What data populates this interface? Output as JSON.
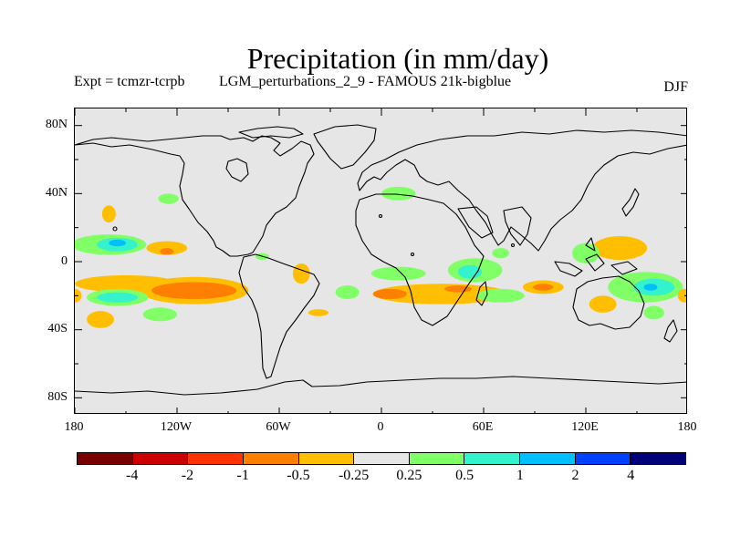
{
  "title": "Precipitation (in mm/day)",
  "expt": "Expt = tcmzr-tcrpb",
  "experiment_name": "LGM_perturbations_2_9 - FAMOUS 21k-bigblue",
  "season": "DJF",
  "axes": {
    "lat_labels": [
      "80N",
      "40N",
      "0",
      "40S",
      "80S"
    ],
    "lon_labels": [
      "180",
      "120W",
      "60W",
      "0",
      "60E",
      "120E",
      "180"
    ]
  },
  "colorbar": {
    "colors": [
      "#7a0000",
      "#cc0000",
      "#ff3300",
      "#ff7f00",
      "#ffbf00",
      "#e6e6e6",
      "#80ff66",
      "#33f2cc",
      "#00bfff",
      "#0040ff",
      "#00007a"
    ],
    "labels": [
      "-4",
      "-2",
      "-1",
      "-0.5",
      "-0.25",
      "0.25",
      "0.5",
      "1",
      "2",
      "4"
    ]
  },
  "map_data": {
    "lon_range": [
      -180,
      180
    ],
    "lat_range": [
      -90,
      90
    ],
    "anomaly_regions": [
      {
        "color": "#80ff66",
        "lon": -160,
        "lat": 10,
        "rx": 22,
        "ry": 6
      },
      {
        "color": "#33f2cc",
        "lon": -155,
        "lat": 10,
        "rx": 12,
        "ry": 4
      },
      {
        "color": "#00bfff",
        "lon": -155,
        "lat": 11,
        "rx": 5,
        "ry": 2
      },
      {
        "color": "#ffbf00",
        "lon": -126,
        "lat": 8,
        "rx": 12,
        "ry": 4
      },
      {
        "color": "#ff7f00",
        "lon": -126,
        "lat": 6,
        "rx": 4,
        "ry": 2
      },
      {
        "color": "#ffbf00",
        "lon": -160,
        "lat": 28,
        "rx": 4,
        "ry": 5
      },
      {
        "color": "#80ff66",
        "lon": -125,
        "lat": 37,
        "rx": 6,
        "ry": 3
      },
      {
        "color": "#ffbf00",
        "lon": -150,
        "lat": -13,
        "rx": 30,
        "ry": 5
      },
      {
        "color": "#ffbf00",
        "lon": -110,
        "lat": -17,
        "rx": 32,
        "ry": 8
      },
      {
        "color": "#ff7f00",
        "lon": -110,
        "lat": -17,
        "rx": 25,
        "ry": 5
      },
      {
        "color": "#80ff66",
        "lon": -155,
        "lat": -21,
        "rx": 18,
        "ry": 5
      },
      {
        "color": "#33f2cc",
        "lon": -155,
        "lat": -21,
        "rx": 12,
        "ry": 3
      },
      {
        "color": "#ffbf00",
        "lon": -180,
        "lat": -20,
        "rx": 4,
        "ry": 4
      },
      {
        "color": "#ffbf00",
        "lon": -165,
        "lat": -34,
        "rx": 8,
        "ry": 5
      },
      {
        "color": "#80ff66",
        "lon": -130,
        "lat": -31,
        "rx": 10,
        "ry": 4
      },
      {
        "color": "#ffbf00",
        "lon": -47,
        "lat": -7,
        "rx": 5,
        "ry": 6
      },
      {
        "color": "#80ff66",
        "lon": -20,
        "lat": -18,
        "rx": 7,
        "ry": 4
      },
      {
        "color": "#ffbf00",
        "lon": -37,
        "lat": -30,
        "rx": 6,
        "ry": 2
      },
      {
        "color": "#80ff66",
        "lon": -70,
        "lat": 3,
        "rx": 4,
        "ry": 2
      },
      {
        "color": "#80ff66",
        "lon": 10,
        "lat": 40,
        "rx": 10,
        "ry": 4
      },
      {
        "color": "#80ff66",
        "lon": 10,
        "lat": -7,
        "rx": 16,
        "ry": 4
      },
      {
        "color": "#80ff66",
        "lon": 55,
        "lat": -5,
        "rx": 16,
        "ry": 7
      },
      {
        "color": "#33f2cc",
        "lon": 52,
        "lat": -6,
        "rx": 7,
        "ry": 4
      },
      {
        "color": "#80ff66",
        "lon": 70,
        "lat": 5,
        "rx": 5,
        "ry": 3
      },
      {
        "color": "#ffbf00",
        "lon": 35,
        "lat": -19,
        "rx": 40,
        "ry": 6
      },
      {
        "color": "#ff7f00",
        "lon": 5,
        "lat": -19,
        "rx": 10,
        "ry": 3
      },
      {
        "color": "#ff7f00",
        "lon": 45,
        "lat": -16,
        "rx": 8,
        "ry": 2
      },
      {
        "color": "#80ff66",
        "lon": 70,
        "lat": -20,
        "rx": 14,
        "ry": 4
      },
      {
        "color": "#ffbf00",
        "lon": 95,
        "lat": -15,
        "rx": 12,
        "ry": 4
      },
      {
        "color": "#ff7f00",
        "lon": 95,
        "lat": -15,
        "rx": 6,
        "ry": 2
      },
      {
        "color": "#ffbf00",
        "lon": 140,
        "lat": 8,
        "rx": 16,
        "ry": 7
      },
      {
        "color": "#80ff66",
        "lon": 120,
        "lat": 5,
        "rx": 8,
        "ry": 6
      },
      {
        "color": "#ffbf00",
        "lon": 130,
        "lat": -25,
        "rx": 8,
        "ry": 5
      },
      {
        "color": "#80ff66",
        "lon": 155,
        "lat": -15,
        "rx": 22,
        "ry": 9
      },
      {
        "color": "#33f2cc",
        "lon": 160,
        "lat": -15,
        "rx": 12,
        "ry": 5
      },
      {
        "color": "#00bfff",
        "lon": 158,
        "lat": -15,
        "rx": 4,
        "ry": 2
      },
      {
        "color": "#ffbf00",
        "lon": 178,
        "lat": -20,
        "rx": 4,
        "ry": 4
      },
      {
        "color": "#80ff66",
        "lon": 160,
        "lat": -30,
        "rx": 6,
        "ry": 4
      }
    ]
  }
}
